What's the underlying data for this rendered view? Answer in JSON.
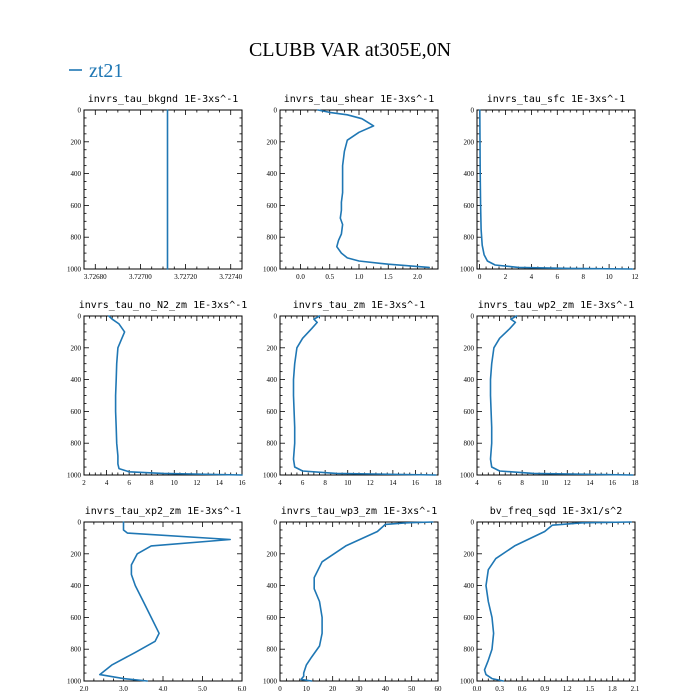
{
  "figure": {
    "title": "CLUBB VAR at305E,0N",
    "legend": "zt21",
    "series_color": "#1f77b4"
  },
  "chart_data": [
    {
      "type": "line",
      "title": "invrs_tau_bkgnd   1E-3xs^-1",
      "xlim": [
        3.72675,
        3.72745
      ],
      "x_ticks": [
        3.7268,
        3.727,
        3.7272,
        3.7274
      ],
      "x_tick_labels": [
        "3.72680",
        "3.72700",
        "3.72720",
        "3.72740"
      ],
      "ylim": [
        0,
        1000
      ],
      "y_ticks": [
        0,
        200,
        400,
        600,
        800,
        1000
      ],
      "y_tick_labels": [
        "0",
        "200",
        "400",
        "600",
        "800",
        "1000"
      ],
      "series": [
        {
          "x": [
            3.72712,
            3.72712
          ],
          "y": [
            0,
            1000
          ]
        }
      ]
    },
    {
      "type": "line",
      "title": "invrs_tau_shear   1E-3xs^-1",
      "xlim": [
        -0.35,
        2.35
      ],
      "x_ticks": [
        0.0,
        0.5,
        1.0,
        1.5,
        2.0
      ],
      "x_tick_labels": [
        "0.0",
        "0.5",
        "1.0",
        "1.5",
        "2.0"
      ],
      "ylim": [
        0,
        1000
      ],
      "y_ticks": [
        0,
        200,
        400,
        600,
        800,
        1000
      ],
      "y_tick_labels": [
        "0",
        "200",
        "400",
        "600",
        "800",
        "1000"
      ],
      "series": [
        {
          "x": [
            0.3,
            0.5,
            0.8,
            1.05,
            1.25,
            1.0,
            0.8,
            0.75,
            0.72,
            0.72,
            0.72,
            0.7,
            0.7,
            0.68,
            0.72,
            0.7,
            0.65,
            0.62,
            0.7,
            0.8,
            1.0,
            1.5,
            2.2
          ],
          "y": [
            0,
            15,
            30,
            55,
            100,
            140,
            190,
            260,
            350,
            450,
            520,
            580,
            630,
            680,
            720,
            780,
            820,
            860,
            900,
            930,
            950,
            970,
            990
          ]
        }
      ]
    },
    {
      "type": "line",
      "title": "invrs_tau_sfc   1E-3xs^-1",
      "xlim": [
        -0.2,
        12
      ],
      "x_ticks": [
        0,
        2,
        4,
        6,
        8,
        10,
        12
      ],
      "x_tick_labels": [
        "0",
        "2",
        "4",
        "6",
        "8",
        "10",
        "12"
      ],
      "ylim": [
        0,
        1000
      ],
      "y_ticks": [
        0,
        200,
        400,
        600,
        800,
        1000
      ],
      "y_tick_labels": [
        "0",
        "200",
        "400",
        "600",
        "800",
        "1000"
      ],
      "series": [
        {
          "x": [
            0.02,
            0.03,
            0.05,
            0.08,
            0.12,
            0.2,
            0.35,
            0.6,
            1.2,
            3.0,
            7.0,
            11.8
          ],
          "y": [
            0,
            200,
            400,
            600,
            750,
            850,
            910,
            950,
            975,
            990,
            996,
            1000
          ]
        }
      ]
    },
    {
      "type": "line",
      "title": "invrs_tau_no_N2_zm   1E-3xs^-1",
      "xlim": [
        2,
        16
      ],
      "x_ticks": [
        2,
        4,
        6,
        8,
        10,
        12,
        14,
        16
      ],
      "x_tick_labels": [
        "2",
        "4",
        "6",
        "8",
        "10",
        "12",
        "14",
        "16"
      ],
      "ylim": [
        0,
        1000
      ],
      "y_ticks": [
        0,
        200,
        400,
        600,
        800,
        1000
      ],
      "y_tick_labels": [
        "0",
        "200",
        "400",
        "600",
        "800",
        "1000"
      ],
      "series": [
        {
          "x": [
            4.2,
            4.5,
            5.1,
            5.6,
            5.3,
            5.0,
            4.9,
            4.85,
            4.8,
            4.8,
            4.85,
            4.9,
            5.0,
            5.0,
            5.1,
            6.0,
            9.0,
            16.0
          ],
          "y": [
            0,
            20,
            50,
            100,
            150,
            200,
            300,
            400,
            500,
            600,
            700,
            800,
            880,
            930,
            960,
            980,
            990,
            1000
          ]
        }
      ]
    },
    {
      "type": "line",
      "title": "invrs_tau_zm   1E-3xs^-1",
      "xlim": [
        4,
        18
      ],
      "x_ticks": [
        4,
        6,
        8,
        10,
        12,
        14,
        16,
        18
      ],
      "x_tick_labels": [
        "4",
        "6",
        "8",
        "10",
        "12",
        "14",
        "16",
        "18"
      ],
      "ylim": [
        0,
        1000
      ],
      "y_ticks": [
        0,
        200,
        400,
        600,
        800,
        1000
      ],
      "y_tick_labels": [
        "0",
        "200",
        "400",
        "600",
        "800",
        "1000"
      ],
      "series": [
        {
          "x": [
            7.5,
            7.0,
            7.3,
            6.8,
            6.0,
            5.5,
            5.3,
            5.2,
            5.2,
            5.25,
            5.3,
            5.3,
            5.2,
            5.3,
            6.0,
            9.0,
            17.8
          ],
          "y": [
            0,
            20,
            40,
            80,
            140,
            200,
            300,
            400,
            500,
            600,
            700,
            800,
            900,
            950,
            975,
            990,
            1000
          ]
        }
      ]
    },
    {
      "type": "line",
      "title": "invrs_tau_wp2_zm   1E-3xs^-1",
      "xlim": [
        4,
        18
      ],
      "x_ticks": [
        4,
        6,
        8,
        10,
        12,
        14,
        16,
        18
      ],
      "x_tick_labels": [
        "4",
        "6",
        "8",
        "10",
        "12",
        "14",
        "16",
        "18"
      ],
      "ylim": [
        0,
        1000
      ],
      "y_ticks": [
        0,
        200,
        400,
        600,
        800,
        1000
      ],
      "y_tick_labels": [
        "0",
        "200",
        "400",
        "600",
        "800",
        "1000"
      ],
      "series": [
        {
          "x": [
            7.5,
            7.0,
            7.4,
            6.9,
            6.0,
            5.5,
            5.3,
            5.2,
            5.2,
            5.25,
            5.3,
            5.3,
            5.2,
            5.3,
            6.0,
            9.0,
            17.8
          ],
          "y": [
            0,
            20,
            40,
            80,
            140,
            200,
            300,
            400,
            500,
            600,
            700,
            800,
            900,
            950,
            975,
            990,
            1000
          ]
        }
      ]
    },
    {
      "type": "line",
      "title": "invrs_tau_xp2_zm   1E-3xs^-1",
      "xlim": [
        2.0,
        6.0
      ],
      "x_ticks": [
        2.0,
        3.0,
        4.0,
        5.0,
        6.0
      ],
      "x_tick_labels": [
        "2.0",
        "3.0",
        "4.0",
        "5.0",
        "6.0"
      ],
      "ylim": [
        0,
        1000
      ],
      "y_ticks": [
        0,
        200,
        400,
        600,
        800,
        1000
      ],
      "y_tick_labels": [
        "0",
        "200",
        "400",
        "600",
        "800",
        "1000"
      ],
      "series": [
        {
          "x": [
            3.0,
            3.0,
            3.1,
            5.7,
            3.7,
            3.35,
            3.2,
            3.2,
            3.3,
            3.5,
            3.7,
            3.9,
            3.8,
            3.3,
            2.7,
            2.4,
            3.0,
            3.6
          ],
          "y": [
            0,
            50,
            70,
            110,
            150,
            200,
            270,
            330,
            400,
            500,
            600,
            700,
            750,
            820,
            900,
            960,
            985,
            1000
          ]
        }
      ]
    },
    {
      "type": "line",
      "title": "invrs_tau_wp3_zm   1E-3xs^-1",
      "xlim": [
        0,
        60
      ],
      "x_ticks": [
        0,
        10,
        20,
        30,
        40,
        50,
        60
      ],
      "x_tick_labels": [
        "0",
        "10",
        "20",
        "30",
        "40",
        "50",
        "60"
      ],
      "ylim": [
        0,
        1000
      ],
      "y_ticks": [
        0,
        200,
        400,
        600,
        800,
        1000
      ],
      "y_tick_labels": [
        "0",
        "200",
        "400",
        "600",
        "800",
        "1000"
      ],
      "series": [
        {
          "x": [
            58,
            48,
            40,
            37,
            25,
            16,
            13,
            13,
            15,
            16,
            16,
            15,
            12,
            10,
            9,
            9,
            8,
            12
          ],
          "y": [
            0,
            5,
            15,
            60,
            150,
            250,
            350,
            420,
            500,
            600,
            700,
            780,
            850,
            900,
            950,
            970,
            990,
            1000
          ]
        }
      ]
    },
    {
      "type": "line",
      "title": "bv_freq_sqd   1E-3x1/s^2",
      "xlim": [
        0.0,
        2.1
      ],
      "x_ticks": [
        0.0,
        0.3,
        0.6,
        0.9,
        1.2,
        1.5,
        1.8,
        2.1
      ],
      "x_tick_labels": [
        "0.0",
        "0.3",
        "0.6",
        "0.9",
        "1.2",
        "1.5",
        "1.8",
        "2.1"
      ],
      "ylim": [
        0,
        1000
      ],
      "y_ticks": [
        0,
        200,
        400,
        600,
        800,
        1000
      ],
      "y_tick_labels": [
        "0",
        "200",
        "400",
        "600",
        "800",
        "1000"
      ],
      "series": [
        {
          "x": [
            2.05,
            1.4,
            1.0,
            0.9,
            0.5,
            0.25,
            0.15,
            0.12,
            0.15,
            0.2,
            0.22,
            0.2,
            0.15,
            0.1,
            0.12,
            0.2,
            0.35
          ],
          "y": [
            0,
            5,
            20,
            60,
            150,
            230,
            300,
            400,
            500,
            600,
            700,
            800,
            870,
            930,
            960,
            985,
            1000
          ]
        }
      ]
    }
  ]
}
